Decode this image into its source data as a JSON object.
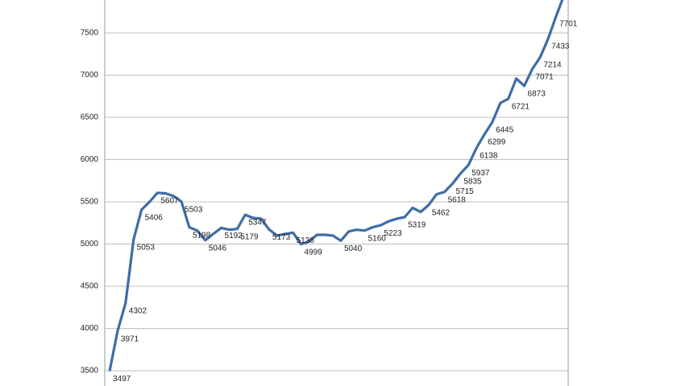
{
  "chart_data": {
    "type": "line",
    "series": [
      {
        "color": "#3e6da5",
        "values": [
          3497,
          3971,
          4302,
          5053,
          5406,
          5500,
          5607,
          5600,
          5570,
          5503,
          5198,
          5160,
          5046,
          5120,
          5192,
          5170,
          5179,
          5347,
          5310,
          5300,
          5173,
          5100,
          5120,
          5136,
          4999,
          5030,
          5110,
          5110,
          5100,
          5040,
          5150,
          5170,
          5160,
          5200,
          5223,
          5270,
          5300,
          5319,
          5430,
          5380,
          5462,
          5590,
          5618,
          5715,
          5835,
          5937,
          6138,
          6299,
          6445,
          6670,
          6721,
          6960,
          6873,
          7071,
          7214,
          7433,
          7701,
          7950
        ],
        "value_labels": [
          "3497",
          "3971",
          "4302",
          "5053",
          "5406",
          null,
          "5607",
          null,
          null,
          "5503",
          "5198",
          null,
          "5046",
          null,
          "5192",
          null,
          "5179",
          "5347",
          null,
          null,
          "5173",
          null,
          null,
          "5136",
          "4999",
          null,
          null,
          null,
          null,
          "5040",
          null,
          null,
          "5160",
          null,
          "5223",
          null,
          null,
          "5319",
          null,
          null,
          "5462",
          null,
          "5618",
          "5715",
          "5835",
          "5937",
          "6138",
          "6299",
          "6445",
          null,
          "6721",
          null,
          "6873",
          "7071",
          "7214",
          "7433",
          "7701",
          null
        ]
      }
    ],
    "ylim": [
      3320,
      7890
    ],
    "yticks": [
      3500,
      4000,
      4500,
      5000,
      5500,
      6000,
      6500,
      7000,
      7500
    ],
    "grid": true
  }
}
